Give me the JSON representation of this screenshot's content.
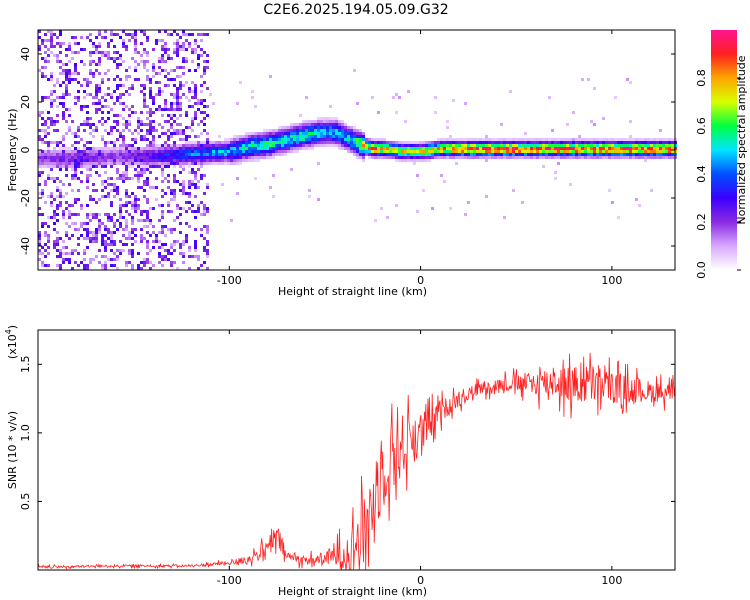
{
  "title": "C2E6.2025.194.05.09.G32",
  "chart_data": [
    {
      "type": "heatmap",
      "title": "C2E6.2025.194.05.09.G32",
      "xlabel": "Height of straight line (km)",
      "ylabel": "Frequency (Hz)",
      "xlim": [
        -200,
        133
      ],
      "ylim": [
        -50,
        50
      ],
      "xticks": [
        -100,
        0,
        100
      ],
      "yticks": [
        -40,
        -20,
        0,
        20,
        40
      ],
      "colorbar": {
        "label": "Normalized spectral amplitude",
        "range": [
          0,
          1
        ],
        "ticks": [
          0.0,
          0.2,
          0.4,
          0.6,
          0.8
        ],
        "colormap": "rainbow",
        "colors": [
          "#ffffff",
          "#d8a8ff",
          "#8a2be2",
          "#3a00ff",
          "#0050ff",
          "#00e5ff",
          "#00ff40",
          "#d8ff00",
          "#ffa500",
          "#ff2020",
          "#ff1493"
        ]
      },
      "ridge": {
        "x": [
          -200,
          -180,
          -160,
          -140,
          -120,
          -100,
          -90,
          -80,
          -70,
          -60,
          -50,
          -45,
          -40,
          -35,
          -30,
          -25,
          -20,
          -10,
          0,
          10,
          20,
          40,
          60,
          80,
          100,
          120,
          133
        ],
        "frequency": [
          -3,
          -3,
          -2,
          -2,
          -1,
          0,
          2,
          3,
          5,
          7,
          8,
          8,
          6,
          4,
          2,
          1,
          1,
          0,
          0,
          1,
          1,
          1,
          1,
          1,
          1,
          1,
          1
        ],
        "peak_amplitude": [
          0.2,
          0.25,
          0.2,
          0.3,
          0.45,
          0.5,
          0.55,
          0.6,
          0.55,
          0.6,
          0.5,
          0.55,
          0.5,
          0.6,
          0.85,
          0.9,
          0.9,
          0.75,
          0.8,
          0.85,
          0.95,
          0.95,
          0.95,
          0.95,
          0.95,
          0.95,
          0.95
        ]
      }
    },
    {
      "type": "line",
      "xlabel": "Height of straight line (km)",
      "ylabel": "SNR (10 * v/v)",
      "y_scale_label": "(x10",
      "y_scale_exponent": "4",
      "xlim": [
        -200,
        133
      ],
      "ylim": [
        0,
        1.75
      ],
      "xticks": [
        -100,
        0,
        100
      ],
      "yticks": [
        0.5,
        1.0,
        1.5
      ],
      "color": "#ff2020",
      "series": [
        {
          "x": [
            -200,
            -160,
            -120,
            -100,
            -90,
            -80,
            -75,
            -70,
            -60,
            -50,
            -40,
            -30,
            -25,
            -20,
            -15,
            -10,
            -5,
            0,
            5,
            10,
            20,
            30,
            40,
            50,
            60,
            70,
            80,
            90,
            100,
            110,
            120,
            133
          ],
          "y": [
            0.02,
            0.03,
            0.03,
            0.05,
            0.08,
            0.15,
            0.25,
            0.1,
            0.07,
            0.08,
            0.12,
            0.25,
            0.5,
            0.7,
            0.85,
            0.9,
            0.95,
            1.0,
            1.05,
            1.15,
            1.25,
            1.32,
            1.35,
            1.36,
            1.36,
            1.38,
            1.34,
            1.36,
            1.33,
            1.32,
            1.3,
            1.3
          ]
        }
      ],
      "noise_amplitude": [
        0.01,
        0.01,
        0.01,
        0.02,
        0.04,
        0.08,
        0.12,
        0.05,
        0.04,
        0.06,
        0.15,
        0.3,
        0.35,
        0.35,
        0.3,
        0.3,
        0.25,
        0.2,
        0.15,
        0.1,
        0.08,
        0.06,
        0.06,
        0.08,
        0.12,
        0.15,
        0.18,
        0.18,
        0.15,
        0.12,
        0.1,
        0.08
      ]
    }
  ]
}
